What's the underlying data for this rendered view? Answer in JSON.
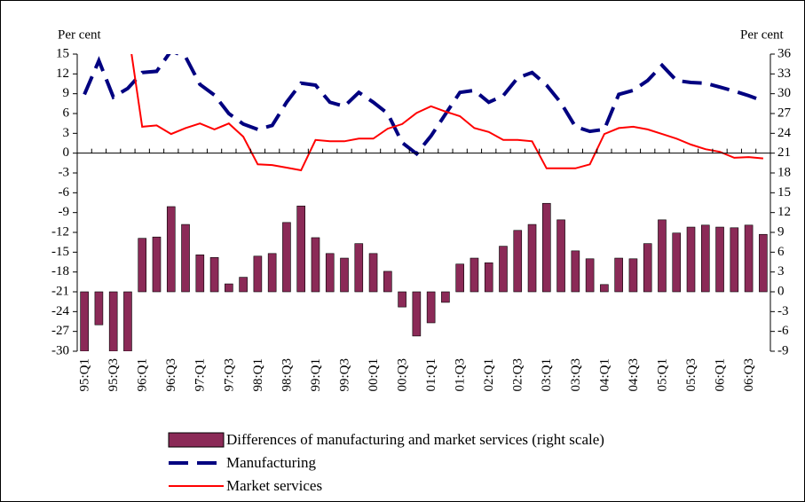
{
  "chart_data": {
    "type": "bar",
    "ylabel": "Per cent",
    "y2label": "Per cent",
    "categories": [
      "95:Q1",
      null,
      "95:Q3",
      null,
      "96:Q1",
      null,
      "96:Q3",
      null,
      "97:Q1",
      null,
      "97:Q3",
      null,
      "98:Q1",
      null,
      "98:Q3",
      null,
      "99:Q1",
      null,
      "99:Q3",
      null,
      "00:Q1",
      null,
      "00:Q3",
      null,
      "01:Q1",
      null,
      "01:Q3",
      null,
      "02:Q1",
      null,
      "02:Q3",
      null,
      "03:Q1",
      null,
      "03:Q3",
      null,
      "04:Q1",
      null,
      "04:Q3",
      null,
      "05:Q1",
      null,
      "05:Q3",
      null,
      "06:Q1",
      null,
      "06:Q3",
      null
    ],
    "series": [
      {
        "name": "Differences of manufacturing and market services (right scale)",
        "type": "bar",
        "axis": "y2",
        "color": "#8b2a57",
        "values": [
          -9,
          -5,
          -9,
          -9,
          8.1,
          8.3,
          12.9,
          10.2,
          5.6,
          5.2,
          1.2,
          2.2,
          5.4,
          5.8,
          10.5,
          13,
          8.2,
          5.8,
          5.1,
          7.3,
          5.8,
          3.1,
          -2.3,
          -6.7,
          -4.7,
          -1.6,
          4.2,
          5.1,
          4.4,
          6.9,
          9.3,
          10.2,
          13.4,
          10.9,
          6.2,
          5,
          1.1,
          5.1,
          5,
          7.3,
          10.9,
          8.9,
          9.8,
          10.1,
          9.8,
          9.7,
          10.1,
          8.7
        ]
      },
      {
        "name": "Manufacturing",
        "type": "line",
        "dash": true,
        "color": "#000080",
        "values": [
          8.9,
          14,
          8.5,
          9.8,
          12.2,
          12.4,
          15.5,
          14.6,
          10.4,
          8.8,
          6,
          4.4,
          3.6,
          4.2,
          7.7,
          10.6,
          10.3,
          7.7,
          7.1,
          9.2,
          7.7,
          6,
          1.6,
          -0.1,
          2.6,
          5.9,
          9.2,
          9.5,
          7.7,
          8.7,
          11.4,
          12.2,
          10.3,
          7.6,
          4,
          3.3,
          3.6,
          8.9,
          9.5,
          11,
          13.3,
          11,
          10.7,
          10.6,
          10,
          9.4,
          8.7,
          7.9
        ]
      },
      {
        "name": "Market services",
        "type": "line",
        "dash": false,
        "color": "#ff0000",
        "values": [
          null,
          null,
          null,
          19,
          4,
          4.2,
          2.9,
          3.8,
          4.5,
          3.6,
          4.5,
          2.5,
          -1.7,
          -1.8,
          -2.2,
          -2.6,
          2,
          1.8,
          1.8,
          2.2,
          2.2,
          3.7,
          4.4,
          6.1,
          7.1,
          6.3,
          5.6,
          3.8,
          3.2,
          2,
          2,
          1.8,
          -2.3,
          -2.3,
          -2.3,
          -1.7,
          2.9,
          3.8,
          4,
          3.6,
          2.9,
          2.2,
          1.3,
          0.6,
          0.2,
          -0.7,
          -0.6,
          -0.8
        ]
      }
    ],
    "ylim": [
      -30,
      15
    ],
    "yticks": [
      15,
      12,
      9,
      6,
      3,
      0,
      -3,
      -6,
      -9,
      -12,
      -15,
      -18,
      -21,
      -24,
      -27,
      -30
    ],
    "y2lim": [
      -9,
      36
    ],
    "y2ticks": [
      36,
      33,
      30,
      27,
      24,
      21,
      18,
      15,
      12,
      9,
      6,
      3,
      0,
      -3,
      -6,
      -9
    ]
  }
}
